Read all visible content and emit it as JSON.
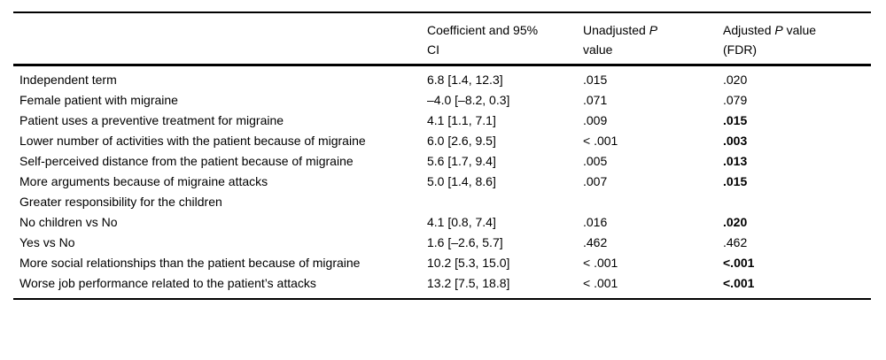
{
  "page": {
    "background_color": "#ffffff",
    "rule_color": "#000000"
  },
  "table": {
    "headers": {
      "stub": "",
      "coefficient": {
        "line1": "Coefficient and 95%",
        "line2": "CI"
      },
      "unadjusted": {
        "line1_pre": "Unadjusted ",
        "line1_italic": "P",
        "line2": "value"
      },
      "adjusted": {
        "line1_pre": "Adjusted ",
        "line1_italic": "P",
        "line1_post": " value",
        "line2": "(FDR)"
      }
    },
    "rows": [
      {
        "label": "Independent term",
        "coefficient": "6.8 [1.4, 12.3]",
        "unadjusted_p": ".015",
        "adjusted_p": ".020",
        "adjusted_bold": false
      },
      {
        "label": "Female patient with migraine",
        "coefficient": "–4.0 [–8.2, 0.3]",
        "unadjusted_p": ".071",
        "adjusted_p": ".079",
        "adjusted_bold": false
      },
      {
        "label": "Patient uses a preventive treatment for migraine",
        "coefficient": "4.1 [1.1, 7.1]",
        "unadjusted_p": ".009",
        "adjusted_p": ".015",
        "adjusted_bold": true
      },
      {
        "label": "Lower number of activities with the patient because of migraine",
        "coefficient": "6.0 [2.6, 9.5]",
        "unadjusted_p": "< .001",
        "adjusted_p": ".003",
        "adjusted_bold": true
      },
      {
        "label": "Self-perceived distance from the patient because of migraine",
        "coefficient": "5.6 [1.7, 9.4]",
        "unadjusted_p": ".005",
        "adjusted_p": ".013",
        "adjusted_bold": true
      },
      {
        "label": "More arguments because of migraine attacks",
        "coefficient": "5.0 [1.4, 8.6]",
        "unadjusted_p": ".007",
        "adjusted_p": ".015",
        "adjusted_bold": true
      },
      {
        "label": "Greater responsibility for the children",
        "coefficient": "",
        "unadjusted_p": "",
        "adjusted_p": "",
        "adjusted_bold": false
      },
      {
        "label": "No children vs No",
        "coefficient": "4.1 [0.8, 7.4]",
        "unadjusted_p": ".016",
        "adjusted_p": ".020",
        "adjusted_bold": true
      },
      {
        "label": "Yes vs No",
        "coefficient": "1.6 [–2.6, 5.7]",
        "unadjusted_p": ".462",
        "adjusted_p": ".462",
        "adjusted_bold": false
      },
      {
        "label": "More social relationships than the patient because of migraine",
        "coefficient": "10.2 [5.3, 15.0]",
        "unadjusted_p": "< .001",
        "adjusted_p": "<.001",
        "adjusted_bold": true
      },
      {
        "label": "Worse job performance related to the patient’s attacks",
        "coefficient": "13.2 [7.5, 18.8]",
        "unadjusted_p": "< .001",
        "adjusted_p": "<.001",
        "adjusted_bold": true
      }
    ]
  }
}
